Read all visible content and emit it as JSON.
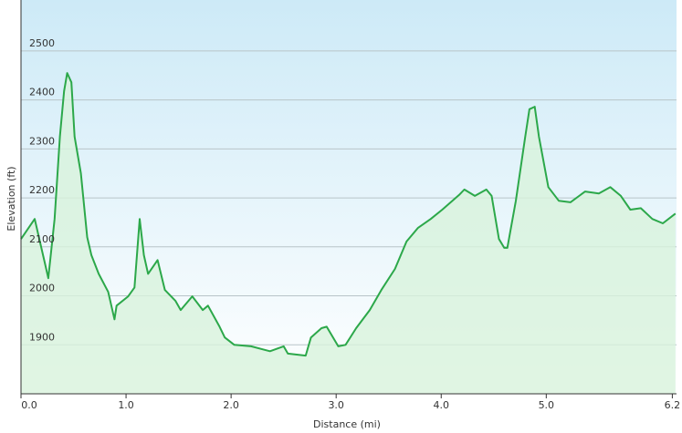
{
  "chart_data": {
    "type": "area",
    "xlabel": "Distance  (mi)",
    "ylabel": "Elevation (ft)",
    "color": "#2ca84a",
    "fill": "#d8f2dc",
    "x": [
      0.0,
      0.13,
      0.23,
      0.26,
      0.32,
      0.37,
      0.41,
      0.44,
      0.48,
      0.51,
      0.57,
      0.63,
      0.67,
      0.74,
      0.83,
      0.89,
      0.91,
      1.02,
      1.08,
      1.13,
      1.17,
      1.21,
      1.3,
      1.37,
      1.47,
      1.52,
      1.63,
      1.73,
      1.78,
      1.89,
      1.94,
      2.03,
      2.19,
      2.37,
      2.5,
      2.54,
      2.71,
      2.76,
      2.86,
      2.91,
      3.02,
      3.09,
      3.19,
      3.32,
      3.43,
      3.56,
      3.67,
      3.78,
      3.9,
      4.01,
      4.17,
      4.22,
      4.32,
      4.43,
      4.48,
      4.55,
      4.6,
      4.63,
      4.71,
      4.8,
      4.84,
      4.89,
      4.93,
      5.02,
      5.12,
      5.23,
      5.37,
      5.5,
      5.61,
      5.71,
      5.8,
      5.9,
      6.01,
      6.11,
      6.23
    ],
    "values": [
      2116,
      2157,
      2064,
      2036,
      2157,
      2325,
      2418,
      2455,
      2436,
      2325,
      2250,
      2120,
      2083,
      2045,
      2008,
      1952,
      1980,
      1999,
      2017,
      2157,
      2083,
      2045,
      2073,
      2012,
      1990,
      1971,
      1999,
      1971,
      1980,
      1937,
      1915,
      1900,
      1897,
      1887,
      1897,
      1882,
      1878,
      1915,
      1934,
      1937,
      1897,
      1900,
      1934,
      1971,
      2012,
      2055,
      2111,
      2139,
      2157,
      2176,
      2206,
      2217,
      2204,
      2217,
      2204,
      2116,
      2098,
      2098,
      2194,
      2325,
      2381,
      2386,
      2325,
      2222,
      2194,
      2191,
      2213,
      2209,
      2222,
      2204,
      2176,
      2179,
      2157,
      2148,
      2168
    ],
    "xlim": [
      0,
      6.24
    ],
    "ylim": [
      1800,
      2604
    ],
    "xticks": [
      {
        "value": 0,
        "label": "0.0"
      },
      {
        "value": 1,
        "label": "1.0"
      },
      {
        "value": 2,
        "label": "2.0"
      },
      {
        "value": 3,
        "label": "3.0"
      },
      {
        "value": 4,
        "label": "4.0"
      },
      {
        "value": 5,
        "label": "5.0"
      },
      {
        "value": 6.2,
        "label": "6.2"
      }
    ],
    "yticks": [
      1900,
      2000,
      2100,
      2200,
      2300,
      2400,
      2500
    ],
    "grid": true
  }
}
